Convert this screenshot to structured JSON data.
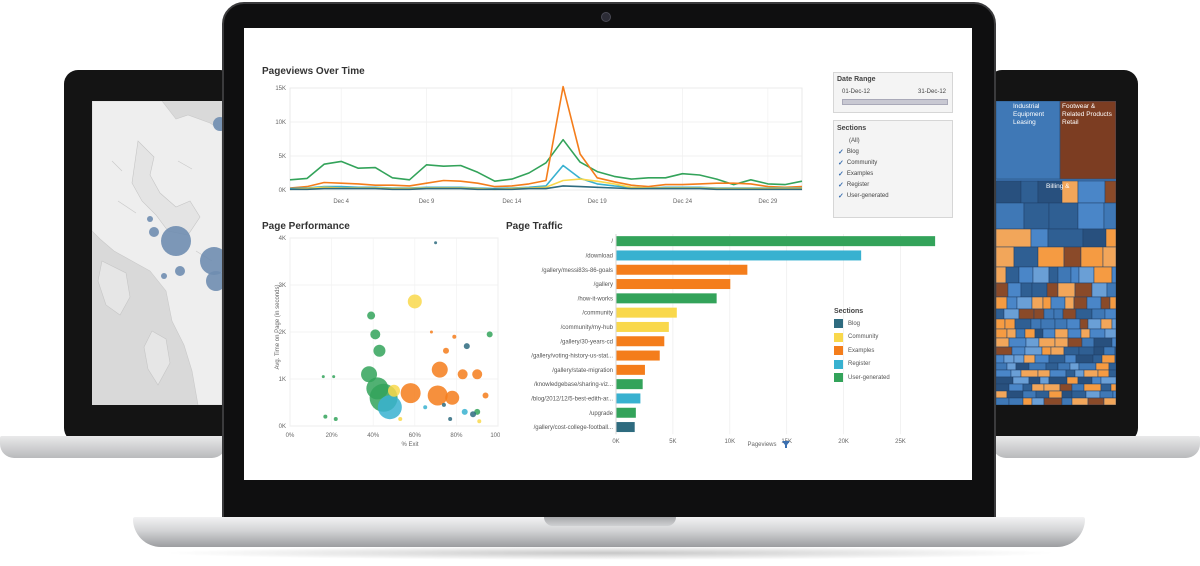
{
  "colors": {
    "blog": "#2e6b7f",
    "community": "#f9d84b",
    "examples": "#f47d1b",
    "register": "#38b1d0",
    "user_generated": "#33a35a"
  },
  "pageviews_panel": {
    "title": "Pageviews Over Time",
    "y_ticks": [
      "15K",
      "10K",
      "5K",
      "0K"
    ],
    "x_ticks": [
      "Dec 4",
      "Dec 9",
      "Dec 14",
      "Dec 19",
      "Dec 24",
      "Dec 29"
    ]
  },
  "date_range_filter": {
    "title": "Date Range",
    "start": "01-Dec-12",
    "end": "31-Dec-12"
  },
  "sections_filter": {
    "title": "Sections",
    "all_label": "(All)",
    "items": [
      "Blog",
      "Community",
      "Examples",
      "Register",
      "User-generated"
    ]
  },
  "page_performance_panel": {
    "title": "Page Performance",
    "y_axis_title": "Avg. Time on Page (in seconds)",
    "y_ticks": [
      "4K",
      "3K",
      "2K",
      "1K",
      "0K"
    ],
    "x_axis_title": "% Exit",
    "x_ticks": [
      "0%",
      "20%",
      "40%",
      "60%",
      "80%",
      "100%"
    ]
  },
  "page_traffic_panel": {
    "title": "Page Traffic",
    "x_axis_title": "Pageviews",
    "x_ticks": [
      "0K",
      "5K",
      "10K",
      "15K",
      "20K",
      "25K"
    ],
    "legend_title": "Sections",
    "legend_items": [
      "Blog",
      "Community",
      "Examples",
      "Register",
      "User-generated"
    ]
  },
  "treemap_labels": {
    "cell_1": "Industrial Equipment Leasing",
    "cell_2": "Footwear & Related Products Retail",
    "cell_3": "Billing &"
  },
  "chart_data": [
    {
      "type": "line",
      "title": "Pageviews Over Time",
      "x": [
        1,
        2,
        3,
        4,
        5,
        6,
        7,
        8,
        9,
        10,
        11,
        12,
        13,
        14,
        15,
        16,
        17,
        18,
        19,
        20,
        21,
        22,
        23,
        24,
        25,
        26,
        27,
        28,
        29,
        30,
        31
      ],
      "ylim": [
        0,
        15000
      ],
      "series": [
        {
          "name": "User-generated",
          "values": [
            1500,
            1700,
            3800,
            4200,
            3200,
            3300,
            1800,
            1500,
            3700,
            3500,
            3600,
            2600,
            1300,
            1600,
            2500,
            4000,
            7400,
            4100,
            2700,
            2000,
            1600,
            1800,
            1800,
            2400,
            2200,
            1600,
            800,
            1500,
            900,
            800,
            1300
          ]
        },
        {
          "name": "Examples",
          "values": [
            300,
            500,
            1100,
            1000,
            900,
            700,
            700,
            600,
            1000,
            1400,
            1300,
            1000,
            500,
            600,
            900,
            1400,
            15200,
            5300,
            1800,
            1200,
            700,
            500,
            800,
            800,
            900,
            1000,
            1000,
            900,
            500,
            400,
            500
          ]
        },
        {
          "name": "Register",
          "values": [
            200,
            300,
            500,
            500,
            400,
            400,
            300,
            300,
            400,
            400,
            400,
            300,
            200,
            300,
            400,
            600,
            3600,
            1700,
            900,
            600,
            400,
            300,
            400,
            400,
            400,
            300,
            300,
            300,
            300,
            300,
            300
          ]
        },
        {
          "name": "Community",
          "values": [
            100,
            200,
            400,
            300,
            300,
            300,
            200,
            200,
            300,
            300,
            300,
            200,
            100,
            200,
            300,
            400,
            1400,
            1600,
            1300,
            900,
            400,
            300,
            300,
            300,
            300,
            200,
            200,
            200,
            200,
            200,
            200
          ]
        },
        {
          "name": "Blog",
          "values": [
            100,
            100,
            200,
            200,
            200,
            200,
            100,
            100,
            200,
            200,
            200,
            100,
            100,
            100,
            200,
            200,
            600,
            500,
            400,
            300,
            200,
            200,
            200,
            200,
            200,
            100,
            100,
            100,
            100,
            100,
            100
          ]
        }
      ]
    },
    {
      "type": "bar",
      "title": "Page Traffic",
      "categories": [
        "/",
        "/download",
        "/gallery/messi83s-86-goals",
        "/gallery",
        "/how-it-works",
        "/community",
        "/community/my-hub",
        "/gallery/30-years-cd",
        "/gallery/voting-history-us-stat...",
        "/gallery/state-migration",
        "/knowledgebase/sharing-viz...",
        "/blog/2012/12/5-best-edith-ar...",
        "/upgrade",
        "/gallery/cost-college-football..."
      ],
      "values": [
        28000,
        21500,
        11500,
        10000,
        8800,
        5300,
        4600,
        4200,
        3800,
        2500,
        2300,
        2100,
        1700,
        1600
      ],
      "sections": [
        "User-generated",
        "Register",
        "Examples",
        "Examples",
        "User-generated",
        "Community",
        "Community",
        "Examples",
        "Examples",
        "Examples",
        "User-generated",
        "Register",
        "User-generated",
        "Blog"
      ],
      "xlabel": "Pageviews",
      "xlim": [
        0,
        29000
      ]
    },
    {
      "type": "scatter",
      "title": "Page Performance",
      "xlabel": "% Exit",
      "ylabel": "Avg. Time on Page (in seconds)",
      "xlim": [
        0,
        100
      ],
      "ylim": [
        0,
        4000
      ],
      "points": [
        {
          "x": 60,
          "y": 2650,
          "size": 7,
          "section": "Community"
        },
        {
          "x": 39,
          "y": 2350,
          "size": 4,
          "section": "User-generated"
        },
        {
          "x": 41,
          "y": 1950,
          "size": 5,
          "section": "User-generated"
        },
        {
          "x": 43,
          "y": 1600,
          "size": 6,
          "section": "User-generated"
        },
        {
          "x": 38,
          "y": 1100,
          "size": 8,
          "section": "User-generated"
        },
        {
          "x": 42,
          "y": 800,
          "size": 11,
          "section": "User-generated"
        },
        {
          "x": 45,
          "y": 600,
          "size": 14,
          "section": "User-generated"
        },
        {
          "x": 48,
          "y": 400,
          "size": 12,
          "section": "Register"
        },
        {
          "x": 50,
          "y": 750,
          "size": 6,
          "section": "Community"
        },
        {
          "x": 58,
          "y": 700,
          "size": 10,
          "section": "Examples"
        },
        {
          "x": 72,
          "y": 1200,
          "size": 8,
          "section": "Examples"
        },
        {
          "x": 71,
          "y": 650,
          "size": 10,
          "section": "Examples"
        },
        {
          "x": 78,
          "y": 600,
          "size": 7,
          "section": "Examples"
        },
        {
          "x": 83,
          "y": 1100,
          "size": 5,
          "section": "Examples"
        },
        {
          "x": 90,
          "y": 1100,
          "size": 5,
          "section": "Examples"
        },
        {
          "x": 75,
          "y": 1600,
          "size": 3,
          "section": "Examples"
        },
        {
          "x": 94,
          "y": 650,
          "size": 3,
          "section": "Examples"
        },
        {
          "x": 96,
          "y": 1950,
          "size": 3,
          "section": "User-generated"
        },
        {
          "x": 85,
          "y": 1700,
          "size": 3,
          "section": "Blog"
        },
        {
          "x": 79,
          "y": 1900,
          "size": 2,
          "section": "Examples"
        },
        {
          "x": 90,
          "y": 300,
          "size": 3,
          "section": "User-generated"
        },
        {
          "x": 84,
          "y": 300,
          "size": 3,
          "section": "Register"
        },
        {
          "x": 88,
          "y": 250,
          "size": 3,
          "section": "Blog"
        },
        {
          "x": 74,
          "y": 450,
          "size": 2,
          "section": "Blog"
        },
        {
          "x": 65,
          "y": 400,
          "size": 2,
          "section": "Register"
        },
        {
          "x": 17,
          "y": 200,
          "size": 2,
          "section": "User-generated"
        },
        {
          "x": 22,
          "y": 150,
          "size": 2,
          "section": "User-generated"
        },
        {
          "x": 16,
          "y": 1050,
          "size": 1.5,
          "section": "User-generated"
        },
        {
          "x": 21,
          "y": 1050,
          "size": 1.5,
          "section": "User-generated"
        },
        {
          "x": 53,
          "y": 150,
          "size": 2,
          "section": "Community"
        },
        {
          "x": 77,
          "y": 150,
          "size": 2,
          "section": "Blog"
        },
        {
          "x": 91,
          "y": 100,
          "size": 2,
          "section": "Community"
        },
        {
          "x": 70,
          "y": 3900,
          "size": 1.5,
          "section": "Blog"
        },
        {
          "x": 68,
          "y": 2000,
          "size": 1.5,
          "section": "Examples"
        }
      ]
    }
  ]
}
